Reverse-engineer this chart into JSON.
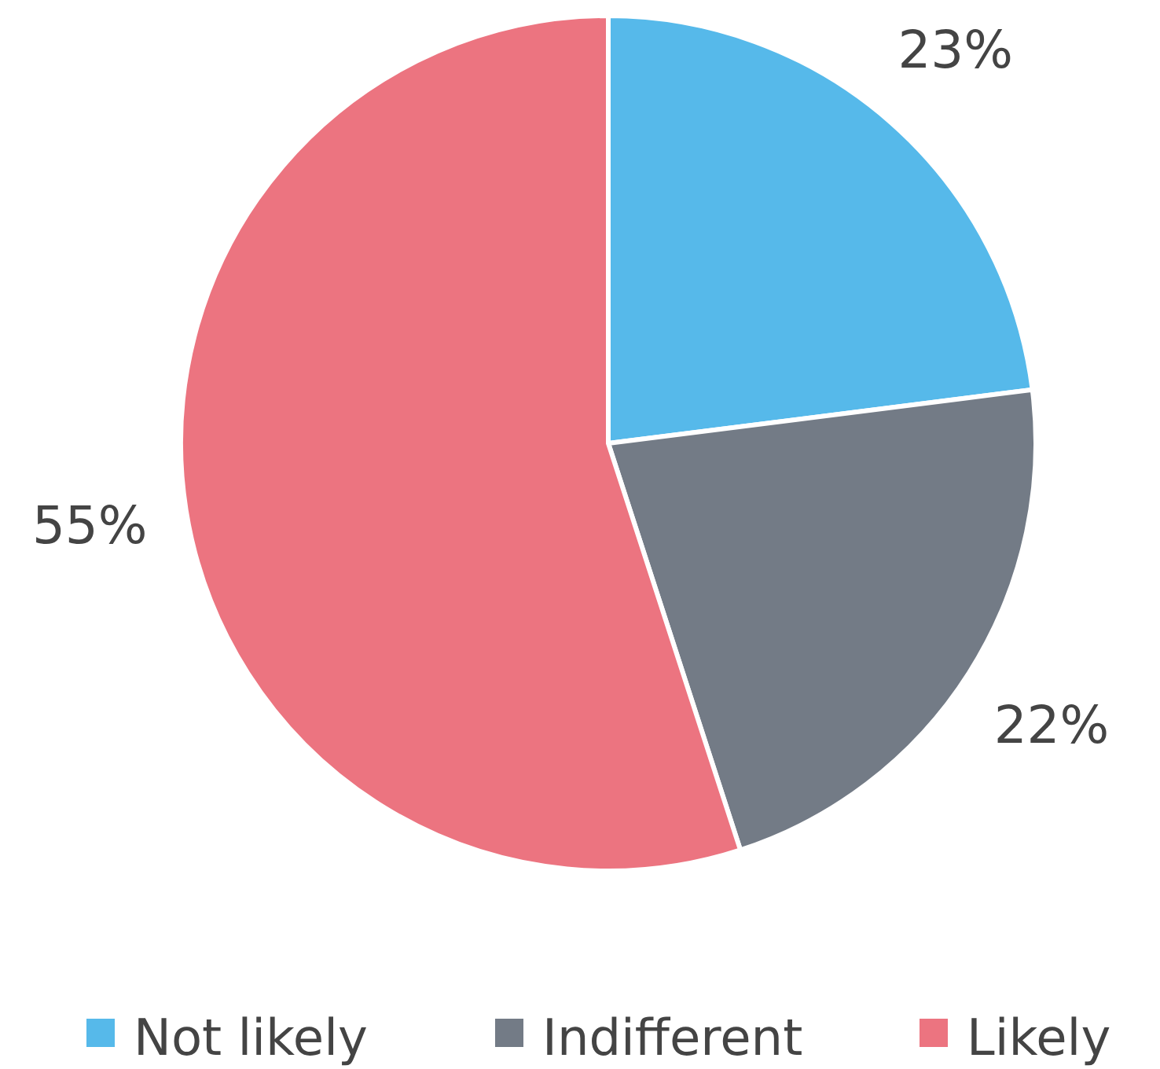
{
  "chart_data": {
    "type": "pie",
    "categories": [
      "Not likely",
      "Indifferent",
      "Likely"
    ],
    "values": [
      23,
      22,
      55
    ],
    "colors": [
      "#56b9ea",
      "#737b86",
      "#ec7480"
    ],
    "value_labels": [
      "23%",
      "22%",
      "55%"
    ],
    "legend": "bottom"
  }
}
